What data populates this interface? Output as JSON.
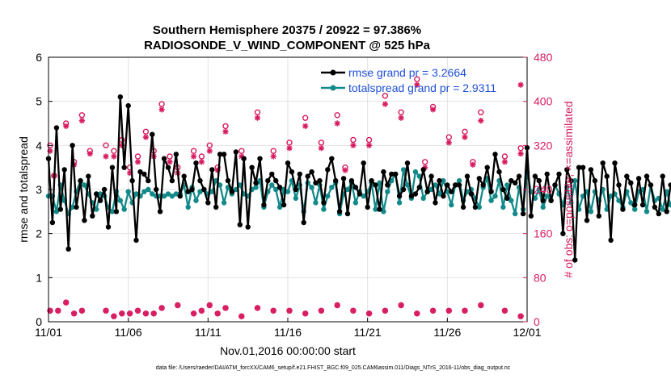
{
  "chart_data": {
    "type": "line",
    "title": "Southern Hemisphere 20375 / 20922 = 97.386%",
    "subtitle": "RADIOSONDE_V_WIND_COMPONENT @ 525 hPa",
    "xlabel": "Nov.01,2016 00:00:00 start",
    "ylabel": "rmse and totalspread",
    "y2label": "# of obs: o=possible; ×=assimilated",
    "footer": "data file: /Users/raeder/DAI/ATM_forcXX/CAM6_setup/f.e21.FHIST_BGC.f09_025.CAM6assim.011/Diags_NTrS_2016-11/obs_diag_output.nc",
    "x_ticks": [
      {
        "day": 0,
        "label": "11/01"
      },
      {
        "day": 5,
        "label": "11/06"
      },
      {
        "day": 10,
        "label": "11/11"
      },
      {
        "day": 15,
        "label": "11/16"
      },
      {
        "day": 20,
        "label": "11/21"
      },
      {
        "day": 25,
        "label": "11/26"
      },
      {
        "day": 30,
        "label": "12/01"
      }
    ],
    "xlim": [
      0,
      30
    ],
    "ylim": [
      0,
      6
    ],
    "y_ticks": [
      "0",
      "1",
      "2",
      "3",
      "4",
      "5",
      "6"
    ],
    "y2lim": [
      0,
      480
    ],
    "y2_ticks": [
      "0",
      "80",
      "160",
      "240",
      "320",
      "400",
      "480"
    ],
    "grid": true,
    "legend_position": "top-right",
    "colors": {
      "rmse": "#000000",
      "spread": "#138a8a",
      "obs": "#d81b60",
      "legend_text": "#1f4fd8"
    },
    "series": [
      {
        "name": "rmse grand pr = 3.2664",
        "x_step_days": 0.25,
        "values": [
          3.7,
          2.25,
          4.4,
          2.55,
          3.45,
          1.65,
          4.0,
          2.6,
          3.2,
          2.3,
          3.3,
          2.4,
          2.9,
          2.75,
          3.0,
          2.15,
          3.5,
          2.5,
          5.1,
          3.5,
          4.9,
          3.2,
          1.85,
          3.4,
          3.35,
          3.2,
          4.25,
          3.0,
          2.5,
          3.7,
          3.5,
          3.2,
          3.8,
          2.85,
          3.3,
          2.95,
          3.0,
          3.6,
          3.2,
          3.0,
          2.7,
          3.45,
          2.6,
          3.8,
          3.8,
          3.2,
          2.95,
          3.85,
          2.2,
          3.7,
          2.15,
          3.5,
          3.15,
          3.7,
          2.65,
          3.2,
          3.35,
          3.2,
          3.05,
          2.65,
          3.6,
          3.4,
          3.0,
          3.35,
          2.25,
          3.3,
          3.4,
          3.15,
          3.2,
          2.7,
          3.45,
          3.7,
          3.2,
          2.5,
          3.25,
          2.45,
          3.2,
          3.05,
          2.9,
          3.6,
          2.6,
          3.2,
          3.1,
          2.55,
          3.4,
          3.1,
          3.35,
          3.35,
          2.85,
          3.0,
          3.6,
          2.85,
          2.9,
          3.05,
          3.45,
          2.95,
          3.3,
          2.7,
          3.2,
          2.85,
          3.1,
          2.95,
          3.1,
          3.1,
          2.6,
          3.3,
          2.9,
          2.6,
          3.25,
          3.1,
          3.5,
          2.95,
          3.8,
          3.4,
          3.0,
          2.8,
          3.2,
          3.15,
          3.3,
          2.45,
          3.95,
          2.4,
          3.3,
          3.2,
          2.75,
          3.35,
          2.75,
          3.1,
          3.35,
          2.0,
          3.45,
          3.2,
          1.4,
          3.5,
          3.5,
          2.3,
          3.45,
          3.2,
          2.4,
          3.6,
          3.3,
          1.85,
          3.6,
          3.1,
          2.55,
          3.3,
          3.15,
          2.65,
          3.25,
          2.65,
          3.3,
          3.1,
          2.6,
          2.45,
          3.3,
          2.5,
          3.1,
          2.95,
          1.95,
          2.55,
          3.15
        ]
      },
      {
        "name": "totalspread grand pr = 2.9311",
        "x_step_days": 0.25,
        "values": [
          2.85,
          2.85,
          2.5,
          3.1,
          2.75,
          2.45,
          2.6,
          2.95,
          3.2,
          3.1,
          2.9,
          2.7,
          2.55,
          2.9,
          2.85,
          2.6,
          2.5,
          2.95,
          2.75,
          2.55,
          2.95,
          2.7,
          2.9,
          2.85,
          2.95,
          3.0,
          2.9,
          2.85,
          2.85,
          2.85,
          2.9,
          2.85,
          2.9,
          2.9,
          3.1,
          2.6,
          3.05,
          2.75,
          2.95,
          3.0,
          2.9,
          2.95,
          3.2,
          3.1,
          2.7,
          3.05,
          2.9,
          3.0,
          3.1,
          2.9,
          2.85,
          3.0,
          3.05,
          3.2,
          2.6,
          2.95,
          3.1,
          3.0,
          2.6,
          3.0,
          2.95,
          3.2,
          2.8,
          3.1,
          2.5,
          3.15,
          3.05,
          2.7,
          3.1,
          2.55,
          2.85,
          3.05,
          3.15,
          2.45,
          2.9,
          3.0,
          3.15,
          2.7,
          2.95,
          2.85,
          2.95,
          3.15,
          2.55,
          3.15,
          2.5,
          2.95,
          3.2,
          3.35,
          2.7,
          3.45,
          3.1,
          2.8,
          3.4,
          3.3,
          2.8,
          2.95,
          3.0,
          3.1,
          2.9,
          3.2,
          2.95,
          2.65,
          3.1,
          3.2,
          2.75,
          2.95,
          3.0,
          2.8,
          2.6,
          3.05,
          3.25,
          2.75,
          2.85,
          3.2,
          2.6,
          3.1,
          2.75,
          2.45,
          3.05,
          2.55,
          3.4,
          2.95,
          2.8,
          3.0,
          2.6,
          2.85,
          2.75,
          3.1,
          2.9,
          2.65,
          3.05,
          2.7,
          3.2,
          2.55,
          2.85,
          2.95,
          2.5,
          2.95,
          2.75,
          3.0,
          2.55,
          2.85,
          2.9,
          2.75,
          2.6,
          2.95,
          2.7,
          2.55,
          2.95,
          3.0,
          2.5,
          3.1,
          2.75,
          2.8,
          2.55,
          2.95,
          2.65,
          2.45,
          2.5
        ]
      },
      {
        "name": "obs possible",
        "axis": "right",
        "marker": "o",
        "points": [
          [
            0.1,
            320
          ],
          [
            0.1,
            20
          ],
          [
            0.35,
            265
          ],
          [
            0.6,
            20
          ],
          [
            1.1,
            360
          ],
          [
            1.1,
            35
          ],
          [
            1.6,
            290
          ],
          [
            1.6,
            15
          ],
          [
            2.1,
            375
          ],
          [
            2.1,
            20
          ],
          [
            2.6,
            310
          ],
          [
            3.6,
            320
          ],
          [
            3.6,
            20
          ],
          [
            4.1,
            310
          ],
          [
            4.1,
            10
          ],
          [
            4.6,
            330
          ],
          [
            4.6,
            15
          ],
          [
            5.1,
            280
          ],
          [
            5.1,
            15
          ],
          [
            5.6,
            300
          ],
          [
            5.6,
            20
          ],
          [
            6.1,
            345
          ],
          [
            6.1,
            15
          ],
          [
            6.6,
            310
          ],
          [
            6.6,
            15
          ],
          [
            7.1,
            395
          ],
          [
            7.1,
            25
          ],
          [
            7.6,
            300
          ],
          [
            8.1,
            280
          ],
          [
            8.1,
            30
          ],
          [
            9.1,
            310
          ],
          [
            9.1,
            15
          ],
          [
            9.6,
            300
          ],
          [
            9.6,
            20
          ],
          [
            10.1,
            320
          ],
          [
            10.1,
            30
          ],
          [
            10.6,
            280
          ],
          [
            10.6,
            15
          ],
          [
            11.1,
            355
          ],
          [
            11.1,
            25
          ],
          [
            12.1,
            310
          ],
          [
            12.1,
            10
          ],
          [
            13.1,
            380
          ],
          [
            13.1,
            25
          ],
          [
            14.1,
            310
          ],
          [
            14.1,
            20
          ],
          [
            15.1,
            325
          ],
          [
            15.1,
            20
          ],
          [
            16.1,
            370
          ],
          [
            16.1,
            15
          ],
          [
            17.1,
            325
          ],
          [
            17.1,
            20
          ],
          [
            18.1,
            375
          ],
          [
            18.1,
            30
          ],
          [
            18.6,
            280
          ],
          [
            19.1,
            330
          ],
          [
            19.1,
            20
          ],
          [
            20.1,
            330
          ],
          [
            20.1,
            15
          ],
          [
            21.1,
            410
          ],
          [
            21.1,
            20
          ],
          [
            22.1,
            380
          ],
          [
            22.1,
            30
          ],
          [
            23.1,
            440
          ],
          [
            23.1,
            15
          ],
          [
            23.6,
            290
          ],
          [
            24.1,
            390
          ],
          [
            24.1,
            20
          ],
          [
            25.1,
            335
          ],
          [
            25.1,
            20
          ],
          [
            26.1,
            345
          ],
          [
            26.1,
            20
          ],
          [
            26.6,
            290
          ],
          [
            27.1,
            380
          ],
          [
            27.1,
            30
          ],
          [
            28.6,
            300
          ],
          [
            28.6,
            20
          ],
          [
            29.6,
            315
          ],
          [
            29.6,
            10
          ]
        ]
      },
      {
        "name": "obs assimilated",
        "axis": "right",
        "marker": "*",
        "points": [
          [
            0.1,
            310
          ],
          [
            0.1,
            20
          ],
          [
            0.35,
            265
          ],
          [
            0.6,
            20
          ],
          [
            1.1,
            355
          ],
          [
            1.1,
            35
          ],
          [
            1.6,
            285
          ],
          [
            1.6,
            15
          ],
          [
            2.1,
            365
          ],
          [
            2.1,
            20
          ],
          [
            2.6,
            305
          ],
          [
            3.6,
            300
          ],
          [
            3.6,
            20
          ],
          [
            4.1,
            300
          ],
          [
            4.1,
            10
          ],
          [
            4.6,
            320
          ],
          [
            4.6,
            15
          ],
          [
            5.1,
            270
          ],
          [
            5.1,
            15
          ],
          [
            5.6,
            290
          ],
          [
            5.6,
            20
          ],
          [
            6.1,
            335
          ],
          [
            6.1,
            15
          ],
          [
            6.6,
            300
          ],
          [
            6.6,
            15
          ],
          [
            7.1,
            385
          ],
          [
            7.1,
            25
          ],
          [
            7.6,
            290
          ],
          [
            8.1,
            270
          ],
          [
            8.1,
            30
          ],
          [
            9.1,
            300
          ],
          [
            9.1,
            15
          ],
          [
            9.6,
            290
          ],
          [
            9.6,
            20
          ],
          [
            10.1,
            310
          ],
          [
            10.1,
            30
          ],
          [
            10.6,
            275
          ],
          [
            10.6,
            15
          ],
          [
            11.1,
            345
          ],
          [
            11.1,
            25
          ],
          [
            12.1,
            300
          ],
          [
            12.1,
            10
          ],
          [
            13.1,
            370
          ],
          [
            13.1,
            25
          ],
          [
            14.1,
            300
          ],
          [
            14.1,
            20
          ],
          [
            15.1,
            315
          ],
          [
            15.1,
            20
          ],
          [
            16.1,
            355
          ],
          [
            16.1,
            15
          ],
          [
            17.1,
            315
          ],
          [
            17.1,
            20
          ],
          [
            18.1,
            360
          ],
          [
            18.1,
            30
          ],
          [
            18.6,
            275
          ],
          [
            19.1,
            320
          ],
          [
            19.1,
            20
          ],
          [
            20.1,
            320
          ],
          [
            20.1,
            15
          ],
          [
            21.1,
            395
          ],
          [
            21.1,
            20
          ],
          [
            22.1,
            370
          ],
          [
            22.1,
            30
          ],
          [
            23.1,
            430
          ],
          [
            23.1,
            15
          ],
          [
            23.6,
            280
          ],
          [
            24.1,
            385
          ],
          [
            24.1,
            20
          ],
          [
            25.1,
            325
          ],
          [
            25.1,
            20
          ],
          [
            26.1,
            335
          ],
          [
            26.1,
            20
          ],
          [
            26.6,
            285
          ],
          [
            27.1,
            365
          ],
          [
            27.1,
            30
          ],
          [
            28.6,
            290
          ],
          [
            28.6,
            20
          ],
          [
            29.6,
            305
          ],
          [
            29.6,
            10
          ],
          [
            29.6,
            430
          ]
        ]
      }
    ]
  }
}
